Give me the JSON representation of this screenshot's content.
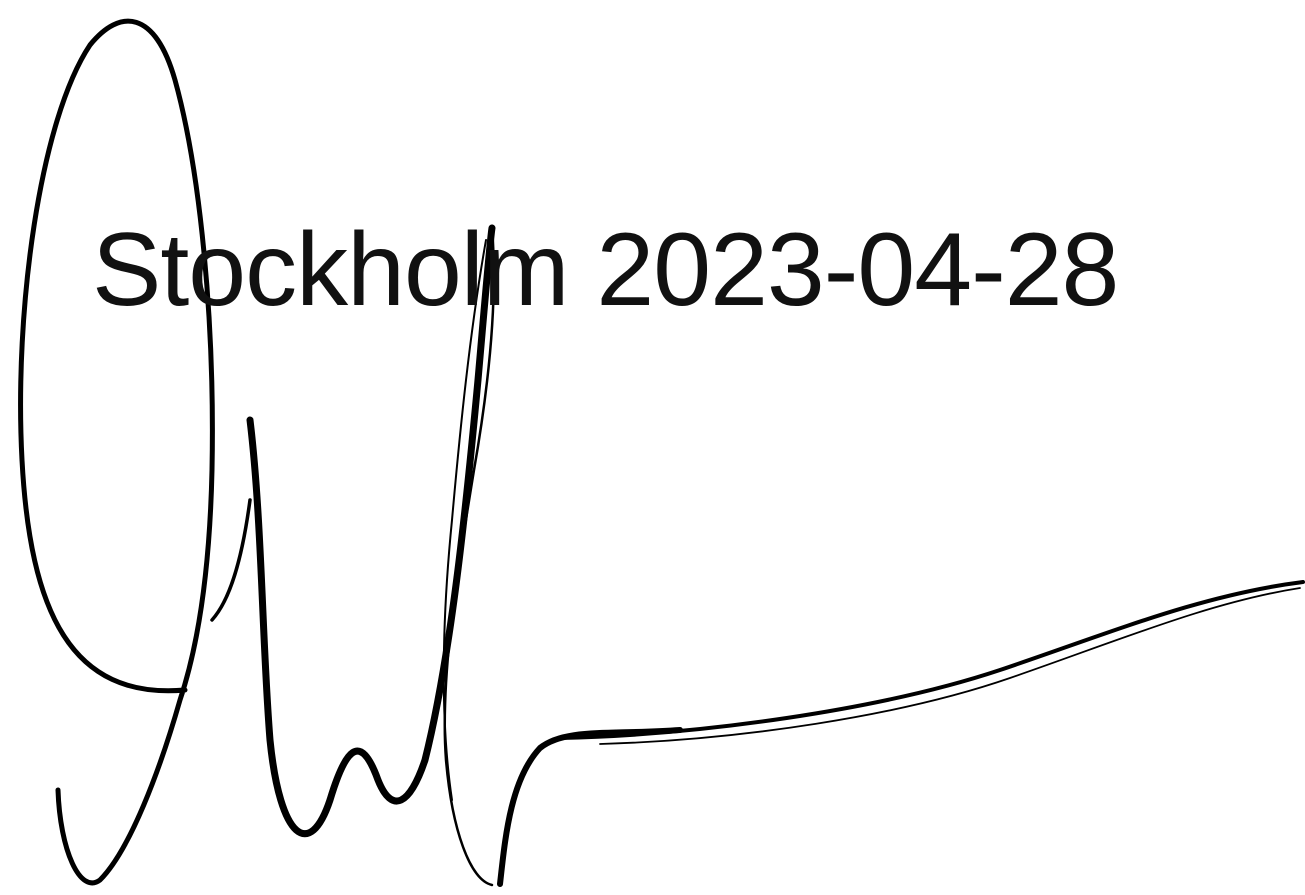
{
  "document": {
    "place_date": "Stockholm 2023-04-28"
  },
  "signature": {
    "description_icon": "handwritten-signature",
    "ink_color": "#000000"
  }
}
